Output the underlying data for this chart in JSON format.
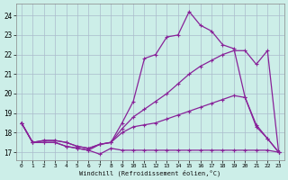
{
  "xlabel": "Windchill (Refroidissement éolien,°C)",
  "bg_color": "#cceee8",
  "grid_color": "#aabbcc",
  "line_color": "#882299",
  "xlim": [
    -0.5,
    23.5
  ],
  "ylim": [
    16.6,
    24.6
  ],
  "xticks": [
    0,
    1,
    2,
    3,
    4,
    5,
    6,
    7,
    8,
    9,
    10,
    11,
    12,
    13,
    14,
    15,
    16,
    17,
    18,
    19,
    20,
    21,
    22,
    23
  ],
  "yticks": [
    17,
    18,
    19,
    20,
    21,
    22,
    23,
    24
  ],
  "s1_x": [
    0,
    1,
    2,
    3,
    4,
    5,
    6,
    7,
    8,
    9,
    10,
    11,
    12,
    13,
    14,
    15,
    16,
    17,
    18,
    19,
    20,
    21,
    22,
    23
  ],
  "s1_y": [
    18.5,
    17.5,
    17.6,
    17.6,
    17.5,
    17.3,
    17.2,
    17.4,
    17.5,
    18.5,
    19.6,
    21.8,
    22.0,
    22.9,
    23.0,
    24.2,
    23.5,
    23.2,
    22.5,
    22.3,
    19.8,
    18.4,
    17.7,
    17.0
  ],
  "s2_x": [
    0,
    1,
    2,
    3,
    4,
    5,
    6,
    7,
    8,
    9,
    10,
    11,
    12,
    13,
    14,
    15,
    16,
    17,
    18,
    19,
    20,
    21,
    22,
    23
  ],
  "s2_y": [
    18.5,
    17.5,
    17.6,
    17.6,
    17.5,
    17.3,
    17.2,
    17.4,
    17.5,
    18.2,
    18.8,
    19.2,
    19.6,
    20.0,
    20.5,
    21.0,
    21.4,
    21.7,
    22.0,
    22.2,
    22.2,
    21.5,
    22.2,
    17.0
  ],
  "s3_x": [
    0,
    1,
    2,
    3,
    4,
    5,
    6,
    7,
    8,
    9,
    10,
    11,
    12,
    13,
    14,
    15,
    16,
    17,
    18,
    19,
    20,
    21,
    22,
    23
  ],
  "s3_y": [
    18.5,
    17.5,
    17.5,
    17.5,
    17.3,
    17.2,
    17.1,
    16.9,
    17.2,
    17.1,
    17.1,
    17.1,
    17.1,
    17.1,
    17.1,
    17.1,
    17.1,
    17.1,
    17.1,
    17.1,
    17.1,
    17.1,
    17.1,
    17.0
  ],
  "s4_x": [
    0,
    1,
    2,
    3,
    4,
    5,
    6,
    7,
    8,
    9,
    10,
    11,
    12,
    13,
    14,
    15,
    16,
    17,
    18,
    19,
    20,
    21,
    22,
    23
  ],
  "s4_y": [
    18.5,
    17.5,
    17.5,
    17.5,
    17.3,
    17.2,
    17.1,
    17.4,
    17.5,
    18.0,
    18.3,
    18.4,
    18.5,
    18.7,
    18.9,
    19.1,
    19.3,
    19.5,
    19.7,
    19.9,
    19.8,
    18.3,
    17.7,
    17.0
  ],
  "marker_size": 2.5,
  "line_width": 0.9
}
